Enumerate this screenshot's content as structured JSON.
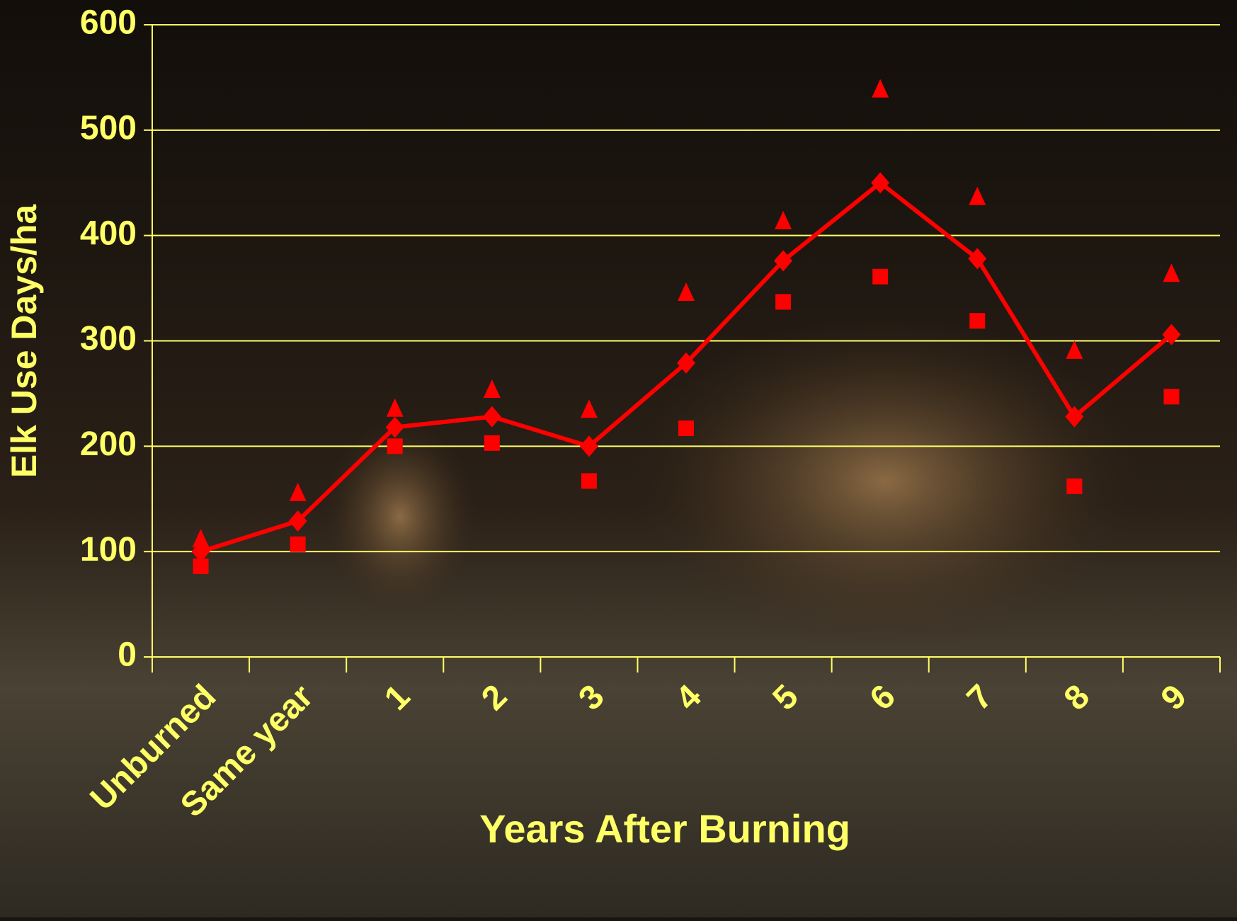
{
  "chart_data": {
    "type": "line",
    "y_label": "Elk Use Days/ha",
    "x_label": "Years After Burning",
    "categories": [
      "Unburned",
      "Same year",
      "1",
      "2",
      "3",
      "4",
      "5",
      "6",
      "7",
      "8",
      "9"
    ],
    "series": [
      {
        "color": "#ff0000",
        "marker": "diamond",
        "line": true,
        "values": [
          100,
          129,
          218,
          228,
          200,
          279,
          376,
          450,
          378,
          228,
          306
        ]
      },
      {
        "color": "#ff0000",
        "marker": "triangle",
        "line": false,
        "values": [
          112,
          156,
          236,
          254,
          235,
          346,
          414,
          539,
          437,
          291,
          364
        ]
      },
      {
        "color": "#ff0000",
        "marker": "square",
        "line": false,
        "values": [
          86,
          107,
          200,
          203,
          167,
          217,
          337,
          361,
          319,
          162,
          247
        ]
      }
    ],
    "ylim": [
      0,
      600
    ],
    "yticks": [
      0,
      100,
      200,
      300,
      400,
      500,
      600
    ],
    "grid": true
  }
}
